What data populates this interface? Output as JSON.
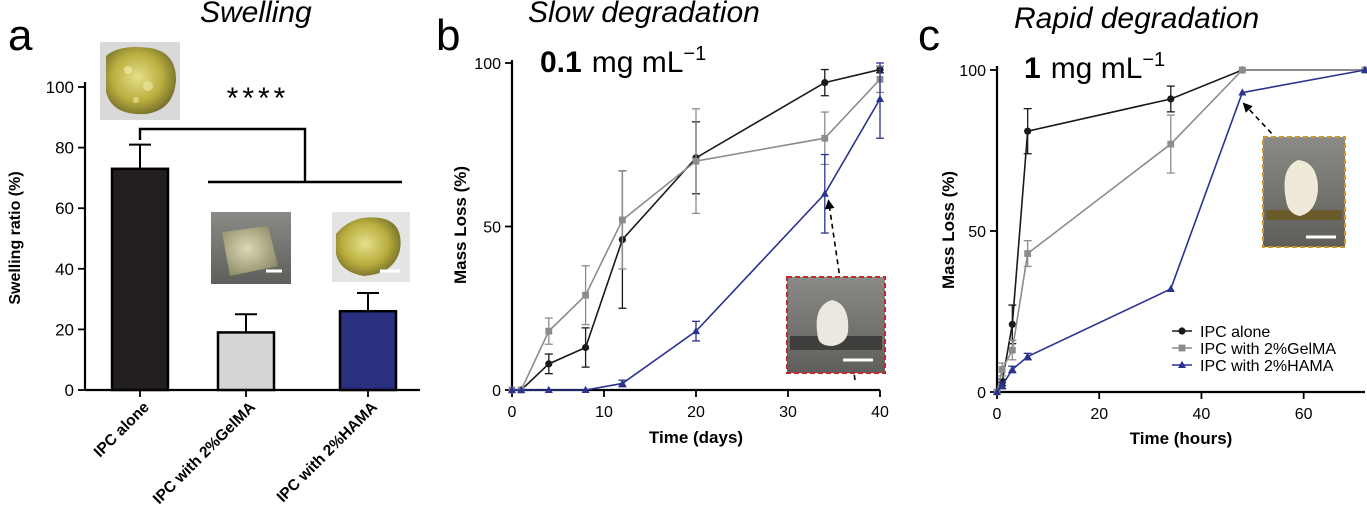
{
  "colors": {
    "black": "#1a1a1a",
    "gray": "#8c8c8c",
    "navy": "#2b3390",
    "bar_black": "#231f20",
    "bar_light": "#d5d5d5",
    "bar_navy": "#2b2f80",
    "inset_red_border": "#c0282d",
    "inset_gold_border": "#c8962a"
  },
  "panels": [
    {
      "letter": "a",
      "title": "Swelling"
    },
    {
      "letter": "b",
      "title": "Slow degradation",
      "concentration_bold": "0.1",
      "concentration_unit": "mg mL",
      "concentration_exp": "−1"
    },
    {
      "letter": "c",
      "title": "Rapid degradation",
      "concentration_bold": "1",
      "concentration_unit": "mg mL",
      "concentration_exp": "−1"
    }
  ],
  "significance": "****",
  "chart_data": [
    {
      "type": "bar",
      "title": "Swelling",
      "ylabel": "Swelling ratio (%)",
      "xlabel": "",
      "categories": [
        "IPC alone",
        "IPC with 2%GelMA",
        "IPC with 2%HAMA"
      ],
      "values": [
        73,
        19,
        26
      ],
      "errors": [
        8,
        6,
        6
      ],
      "ylim": [
        0,
        100
      ],
      "yticks": [
        0,
        20,
        40,
        60,
        80,
        100
      ],
      "annotation": "****",
      "bar_colors": [
        "#231f20",
        "#d5d5d5",
        "#2b2f80"
      ]
    },
    {
      "type": "line",
      "title": "Slow degradation",
      "subtitle": "0.1 mg mL−1",
      "xlabel": "Time (days)",
      "ylabel": "Mass Loss (%)",
      "xlim": [
        0,
        40
      ],
      "ylim": [
        0,
        100
      ],
      "xticks": [
        0,
        10,
        20,
        30,
        40
      ],
      "yticks": [
        0,
        50,
        100
      ],
      "series": [
        {
          "name": "IPC alone",
          "color": "#1a1a1a",
          "marker": "circle",
          "points": [
            [
              0,
              0
            ],
            [
              1,
              0
            ],
            [
              4,
              8
            ],
            [
              8,
              13
            ],
            [
              12,
              46
            ],
            [
              20,
              71
            ],
            [
              34,
              94
            ],
            [
              40,
              98
            ]
          ],
          "errors": [
            0,
            0,
            3,
            6,
            21,
            11,
            4,
            1
          ]
        },
        {
          "name": "IPC with 2%GelMA",
          "color": "#8c8c8c",
          "marker": "square",
          "points": [
            [
              0,
              0
            ],
            [
              1,
              0
            ],
            [
              4,
              18
            ],
            [
              8,
              29
            ],
            [
              12,
              52
            ],
            [
              20,
              70
            ],
            [
              34,
              77
            ],
            [
              40,
              95
            ]
          ],
          "errors": [
            0,
            0,
            4,
            9,
            15,
            16,
            8,
            4
          ]
        },
        {
          "name": "IPC with 2%HAMA",
          "color": "#2b3390",
          "marker": "triangle",
          "points": [
            [
              0,
              0
            ],
            [
              1,
              0
            ],
            [
              4,
              0
            ],
            [
              8,
              0
            ],
            [
              12,
              2
            ],
            [
              20,
              18
            ],
            [
              34,
              60
            ],
            [
              40,
              89
            ]
          ],
          "errors": [
            0,
            0,
            0,
            0,
            1,
            3,
            12,
            12
          ]
        }
      ]
    },
    {
      "type": "line",
      "title": "Rapid degradation",
      "subtitle": "1 mg mL−1",
      "xlabel": "Time (hours)",
      "ylabel": "Mass Loss (%)",
      "xlim": [
        0,
        72
      ],
      "ylim": [
        0,
        100
      ],
      "xticks": [
        0,
        20,
        40,
        60
      ],
      "yticks": [
        0,
        50,
        100
      ],
      "legend": "lower-right",
      "series": [
        {
          "name": "IPC alone",
          "color": "#1a1a1a",
          "marker": "circle",
          "points": [
            [
              0,
              0
            ],
            [
              1,
              3
            ],
            [
              3,
              21
            ],
            [
              6,
              81
            ],
            [
              34,
              91
            ],
            [
              48,
              100
            ],
            [
              72,
              100
            ]
          ],
          "errors": [
            0,
            1,
            6,
            7,
            4,
            0,
            0
          ]
        },
        {
          "name": "IPC with 2%GelMA",
          "color": "#8c8c8c",
          "marker": "square",
          "points": [
            [
              0,
              0
            ],
            [
              1,
              7
            ],
            [
              3,
              13
            ],
            [
              6,
              43
            ],
            [
              34,
              77
            ],
            [
              48,
              100
            ],
            [
              72,
              100
            ]
          ],
          "errors": [
            0,
            2,
            3,
            4,
            9,
            0,
            0
          ]
        },
        {
          "name": "IPC with 2%HAMA",
          "color": "#2b3390",
          "marker": "triangle",
          "points": [
            [
              0,
              0
            ],
            [
              1,
              2
            ],
            [
              3,
              7
            ],
            [
              6,
              11
            ],
            [
              34,
              32
            ],
            [
              48,
              93
            ],
            [
              72,
              100
            ]
          ],
          "errors": [
            0,
            1,
            1,
            1,
            0,
            0,
            0
          ]
        }
      ]
    }
  ]
}
